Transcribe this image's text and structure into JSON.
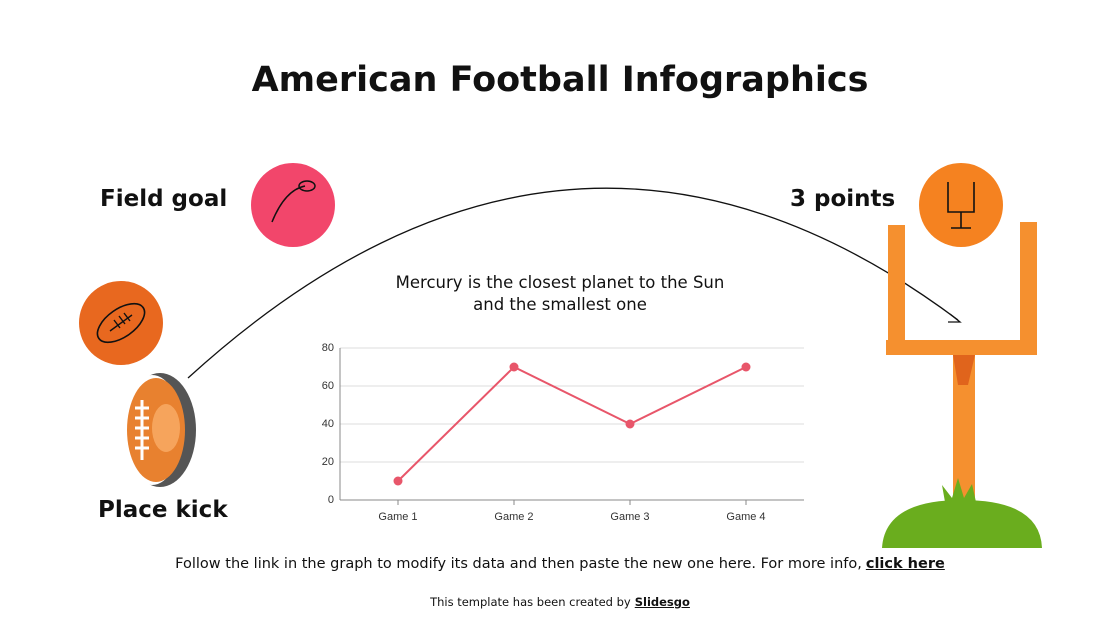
{
  "title": "American Football Infographics",
  "labels": {
    "field_goal": "Field goal",
    "points": "3 points",
    "place_kick": "Place kick"
  },
  "chart_data": {
    "type": "line",
    "title": "Mercury is the closest planet to the Sun and the smallest one",
    "categories": [
      "Game 1",
      "Game 2",
      "Game 3",
      "Game 4"
    ],
    "values": [
      10,
      70,
      40,
      70
    ],
    "color": "#e8566a",
    "ylim": [
      0,
      80
    ],
    "yticks": [
      0,
      20,
      40,
      60,
      80
    ],
    "grid": true
  },
  "footer": {
    "text": "Follow the link in the graph to modify its data and then paste the new one here. For more info,",
    "link": "click here"
  },
  "credit": {
    "text": "This template has been created by",
    "link": "Slidesgo"
  }
}
